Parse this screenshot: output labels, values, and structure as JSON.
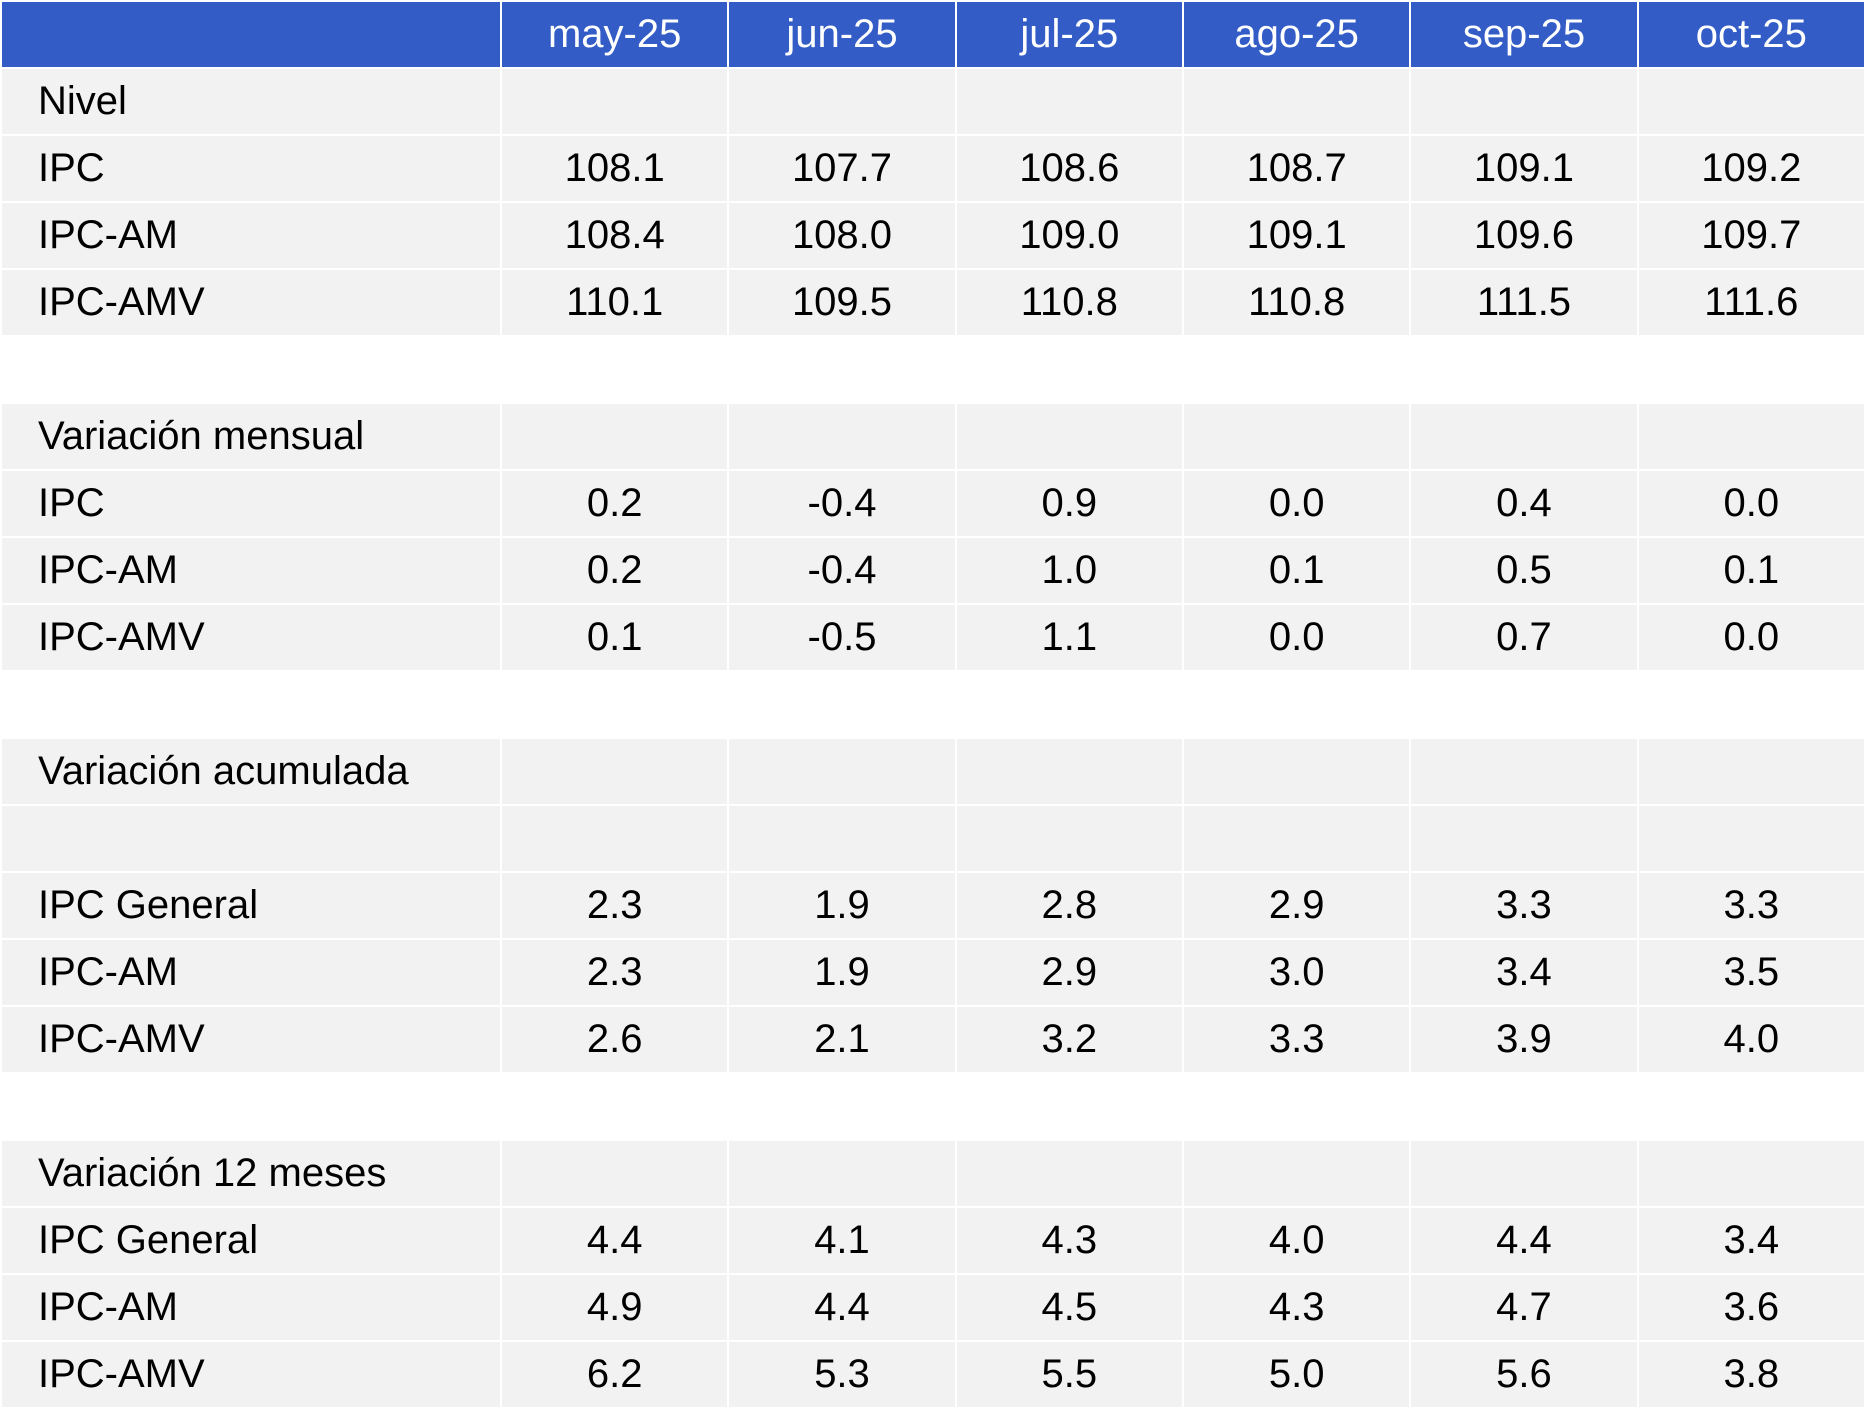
{
  "header": {
    "corner": "",
    "months": [
      "may-25",
      "jun-25",
      "jul-25",
      "ago-25",
      "sep-25",
      "oct-25"
    ]
  },
  "colors": {
    "header_bg": "#335cc7",
    "row_bg": "#f2f2f2"
  },
  "sections": [
    {
      "title": "Nivel",
      "extra_blank": false,
      "rows": [
        {
          "label": "IPC",
          "values": [
            "108.1",
            "107.7",
            "108.6",
            "108.7",
            "109.1",
            "109.2"
          ]
        },
        {
          "label": "IPC-AM",
          "values": [
            "108.4",
            "108.0",
            "109.0",
            "109.1",
            "109.6",
            "109.7"
          ]
        },
        {
          "label": "IPC-AMV",
          "values": [
            "110.1",
            "109.5",
            "110.8",
            "110.8",
            "111.5",
            "111.6"
          ]
        }
      ]
    },
    {
      "title": "Variación mensual",
      "extra_blank": false,
      "rows": [
        {
          "label": "IPC",
          "values": [
            "0.2",
            "-0.4",
            "0.9",
            "0.0",
            "0.4",
            "0.0"
          ]
        },
        {
          "label": "IPC-AM",
          "values": [
            "0.2",
            "-0.4",
            "1.0",
            "0.1",
            "0.5",
            "0.1"
          ]
        },
        {
          "label": "IPC-AMV",
          "values": [
            "0.1",
            "-0.5",
            "1.1",
            "0.0",
            "0.7",
            "0.0"
          ]
        }
      ]
    },
    {
      "title": "Variación acumulada",
      "extra_blank": true,
      "rows": [
        {
          "label": "IPC General",
          "values": [
            "2.3",
            "1.9",
            "2.8",
            "2.9",
            "3.3",
            "3.3"
          ]
        },
        {
          "label": "IPC-AM",
          "values": [
            "2.3",
            "1.9",
            "2.9",
            "3.0",
            "3.4",
            "3.5"
          ]
        },
        {
          "label": "IPC-AMV",
          "values": [
            "2.6",
            "2.1",
            "3.2",
            "3.3",
            "3.9",
            "4.0"
          ]
        }
      ]
    },
    {
      "title": "Variación 12 meses",
      "extra_blank": false,
      "rows": [
        {
          "label": "IPC General",
          "values": [
            "4.4",
            "4.1",
            "4.3",
            "4.0",
            "4.4",
            "3.4"
          ]
        },
        {
          "label": "IPC-AM",
          "values": [
            "4.9",
            "4.4",
            "4.5",
            "4.3",
            "4.7",
            "3.6"
          ]
        },
        {
          "label": "IPC-AMV",
          "values": [
            "6.2",
            "5.3",
            "5.5",
            "5.0",
            "5.6",
            "3.8"
          ]
        }
      ]
    }
  ]
}
